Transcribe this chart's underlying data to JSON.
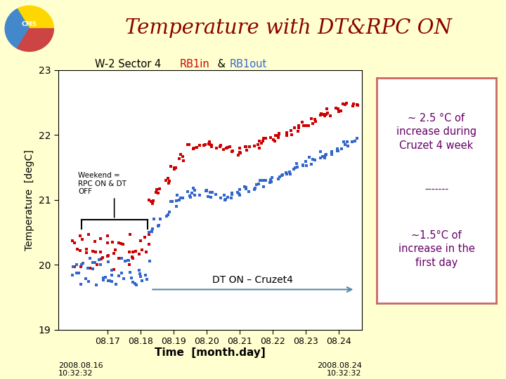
{
  "title": "Temperature with DT&RPC ON",
  "title_color": "#8B0000",
  "rb1in_color": "#CC0000",
  "rb1out_color": "#3366CC",
  "ylabel": "Temperature  [degC]",
  "xlabel": "Time  [month.day]",
  "ylim": [
    19,
    23
  ],
  "yticks": [
    19,
    20,
    21,
    22,
    23
  ],
  "bg_color": "#FFFFD0",
  "plot_bg": "#FFFFFF",
  "border_color": "#8B0000",
  "box_text1": "~ 2.5 °C of\nincrease during\nCruzet 4 week",
  "box_text2": "-------",
  "box_text3": "~1.5°C of\nincrease in the\nfirst day",
  "box_text_color": "#660066",
  "box_border_color": "#CC6666",
  "annotation_text": "Weekend =\nRPC ON & DT\nOFF",
  "arrow_text": "DT ON – Cruzet4",
  "timestamp_left": "2008.08.16\n10:32:32",
  "timestamp_right": "2008.08.24\n10:32:32",
  "xtick_labels": [
    "08.17",
    "08.18",
    "08.19",
    "08.20",
    "08.21",
    "08.22",
    "08.23",
    "08.24"
  ],
  "xtick_positions": [
    8.17,
    8.18,
    8.19,
    8.2,
    8.21,
    8.22,
    8.23,
    8.24
  ],
  "xlim": [
    8.155,
    8.247
  ]
}
